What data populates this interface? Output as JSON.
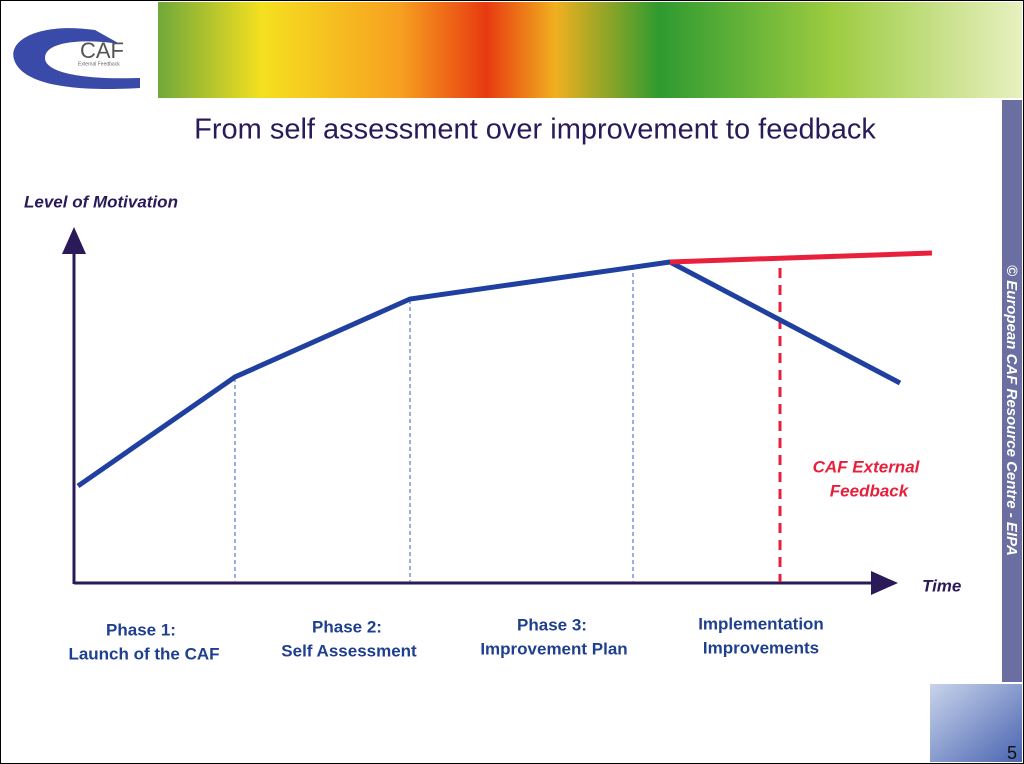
{
  "header": {
    "logo": "CAF",
    "logo_subtitle": "External Feedback"
  },
  "title": "From self assessment over improvement to feedback",
  "y_axis_label": "Level of Motivation",
  "x_axis_label": "Time",
  "phases": [
    {
      "lines": [
        "Phase 1:",
        "Launch of the CAF"
      ]
    },
    {
      "lines": [
        "Phase 2:",
        "Self Assessment"
      ]
    },
    {
      "lines": [
        "Phase 3:",
        "Improvement Plan"
      ]
    },
    {
      "lines": [
        "Implementation",
        "Improvements"
      ]
    }
  ],
  "annotation": {
    "lines": [
      "CAF External",
      "Feedback"
    ]
  },
  "side_text": "© European CAF Resource Centre - EIPA",
  "page_number": "5"
}
